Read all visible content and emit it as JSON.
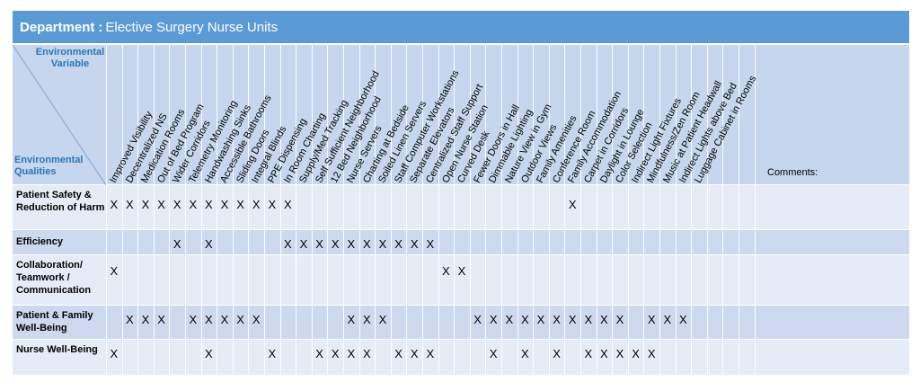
{
  "title": {
    "label": "Department",
    "separator": ":",
    "value": "Elective Surgery Nurse Units"
  },
  "header": {
    "environmental_variable": "Environmental Variable",
    "environmental_qualities": "Environmental Qualities",
    "comments": "Comments:"
  },
  "variables": [
    "Improved Visibility",
    "Decentralized NS",
    "Medication Rooms",
    "Out of Bed Program",
    "Wider Corridors",
    "Telemetry Monitoring",
    "Handwashing Sinks",
    "Accessible Bathrooms",
    "Sliding Doors",
    "Integral Blinds",
    "PPE Dispensing",
    "In Room Charting",
    "Supply/Med Tracking",
    "Self Sufficient Neighborhood",
    "12 Bed Neighborhood",
    "Nurse Servers",
    "Charting at Bedside",
    "Soiled Linen Servers",
    "Staff Computer Workstations",
    "Separate Elevators",
    "Centralized Staff Support",
    "Open Nurse Station",
    "Curved Desk",
    "Fewer Doors in Hall",
    "Dimmable Lighting",
    "Nature View in Gym",
    "Outdoor Views",
    "Family Amenities",
    "Conference Room",
    "Family Accommodation",
    "Carpet in Corridors",
    "Daylight in Lounge",
    "Color Selection",
    "Indirect Light Fixtures",
    "Mindfulness/Zen Room",
    "Music at Patient Headwall",
    "Indirect Lights above Bed",
    "Luggage Cabinet in Rooms"
  ],
  "rows": [
    {
      "label": "Patient Safety & Reduction of Harm",
      "marks": [
        0,
        1,
        2,
        3,
        4,
        5,
        6,
        7,
        8,
        9,
        10,
        11,
        29
      ]
    },
    {
      "label": "Efficiency",
      "marks": [
        4,
        6,
        11,
        12,
        13,
        14,
        15,
        16,
        17,
        18,
        19,
        20
      ]
    },
    {
      "label": "Collaboration/ Teamwork / Communication",
      "marks": [
        0,
        21,
        22
      ]
    },
    {
      "label": "Patient & Family Well-Being",
      "marks": [
        1,
        2,
        3,
        5,
        6,
        7,
        8,
        9,
        15,
        16,
        17,
        23,
        24,
        25,
        26,
        27,
        28,
        29,
        30,
        31,
        32,
        34,
        35,
        36
      ]
    },
    {
      "label": "Nurse Well-Being",
      "marks": [
        0,
        6,
        10,
        13,
        14,
        15,
        16,
        18,
        19,
        20,
        24,
        26,
        28,
        30,
        31,
        32,
        33,
        34
      ]
    }
  ],
  "mark_symbol": "X"
}
